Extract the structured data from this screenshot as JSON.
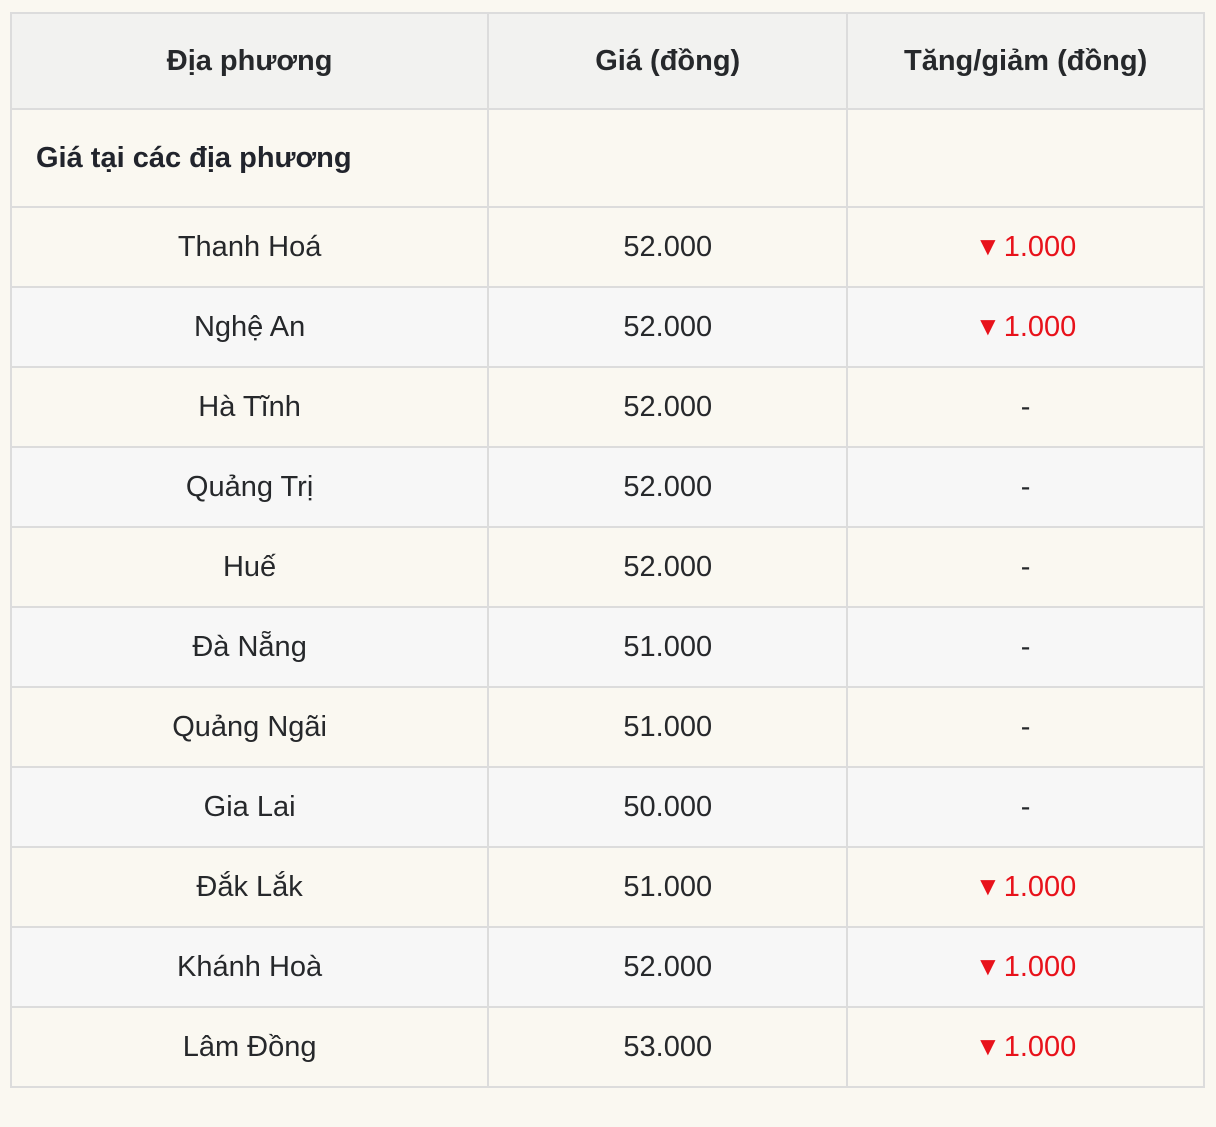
{
  "colors": {
    "page_background": "#faf8f1",
    "header_background": "#f2f2f0",
    "alt_row_background": "#f7f7f7",
    "text": "#26282b",
    "decrease_red": "#e8121b",
    "border": "#dcdcdc"
  },
  "table": {
    "header": {
      "col_location": "Địa phương",
      "col_price": "Giá (đồng)",
      "col_change": "Tăng/giảm (đồng)"
    },
    "section_label": "Giá tại các địa phương",
    "rows": [
      {
        "location": "Thanh Hoá",
        "price": "52.000",
        "arrow": "▼",
        "change": "1.000",
        "direction": "down"
      },
      {
        "location": "Nghệ An",
        "price": "52.000",
        "arrow": "▼",
        "change": "1.000",
        "direction": "down"
      },
      {
        "location": "Hà Tĩnh",
        "price": "52.000",
        "arrow": "",
        "change": "-",
        "direction": "none"
      },
      {
        "location": "Quảng Trị",
        "price": "52.000",
        "arrow": "",
        "change": "-",
        "direction": "none"
      },
      {
        "location": "Huế",
        "price": "52.000",
        "arrow": "",
        "change": "-",
        "direction": "none"
      },
      {
        "location": "Đà Nẵng",
        "price": "51.000",
        "arrow": "",
        "change": "-",
        "direction": "none"
      },
      {
        "location": "Quảng Ngãi",
        "price": "51.000",
        "arrow": "",
        "change": "-",
        "direction": "none"
      },
      {
        "location": "Gia Lai",
        "price": "50.000",
        "arrow": "",
        "change": "-",
        "direction": "none"
      },
      {
        "location": "Đắk Lắk",
        "price": "51.000",
        "arrow": "▼",
        "change": "1.000",
        "direction": "down"
      },
      {
        "location": "Khánh Hoà",
        "price": "52.000",
        "arrow": "▼",
        "change": "1.000",
        "direction": "down"
      },
      {
        "location": "Lâm Đồng",
        "price": "53.000",
        "arrow": "▼",
        "change": "1.000",
        "direction": "down"
      }
    ]
  },
  "chart_data": {
    "type": "table",
    "title": "Giá tại các địa phương",
    "columns": [
      "Địa phương",
      "Giá (đồng)",
      "Tăng/giảm (đồng)"
    ],
    "rows": [
      [
        "Thanh Hoá",
        "52.000",
        "▼1.000"
      ],
      [
        "Nghệ An",
        "52.000",
        "▼1.000"
      ],
      [
        "Hà Tĩnh",
        "52.000",
        "-"
      ],
      [
        "Quảng Trị",
        "52.000",
        "-"
      ],
      [
        "Huế",
        "52.000",
        "-"
      ],
      [
        "Đà Nẵng",
        "51.000",
        "-"
      ],
      [
        "Quảng Ngãi",
        "51.000",
        "-"
      ],
      [
        "Gia Lai",
        "50.000",
        "-"
      ],
      [
        "Đắk Lắk",
        "51.000",
        "▼1.000"
      ],
      [
        "Khánh Hoà",
        "52.000",
        "▼1.000"
      ],
      [
        "Lâm Đồng",
        "53.000",
        "▼1.000"
      ]
    ]
  }
}
